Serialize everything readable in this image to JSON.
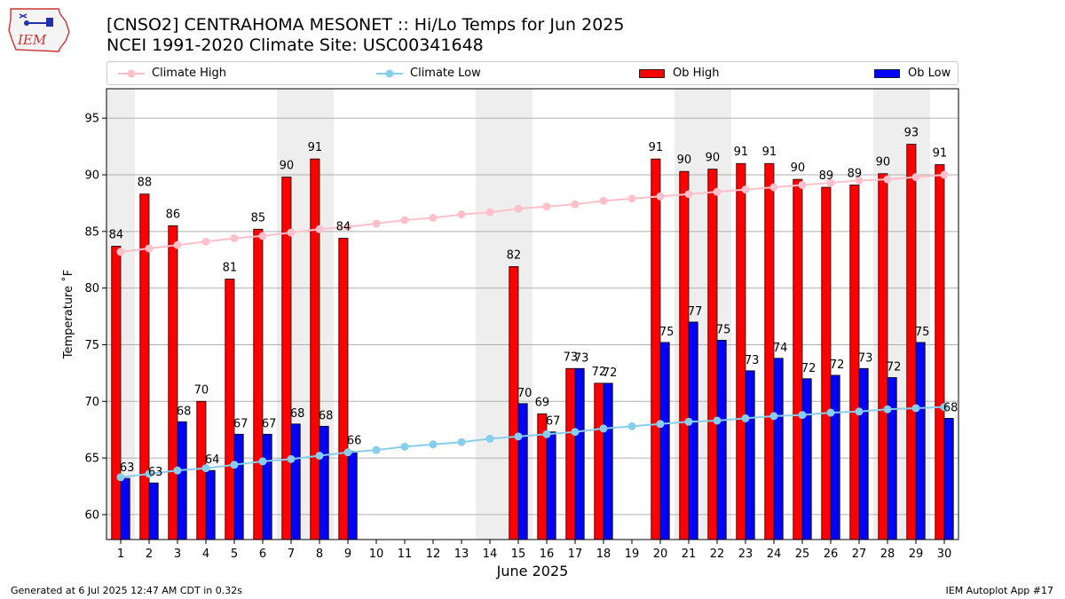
{
  "title_line1": "[CNSO2] CENTRAHOMA MESONET :: Hi/Lo Temps for Jun 2025",
  "title_line2": "NCEI 1991-2020 Climate Site: USC00341648",
  "logo_text": "IEM",
  "legend": {
    "climate_high": "Climate High",
    "climate_low": "Climate Low",
    "ob_high": "Ob High",
    "ob_low": "Ob Low"
  },
  "colors": {
    "ob_high": "#ff0000",
    "ob_low": "#0000ff",
    "climate_high": "#ffc0cb",
    "climate_low": "#87ceeb",
    "weekend_shade": "#eeeeee",
    "grid": "#b0b0b0"
  },
  "chart_data": {
    "type": "bar",
    "xlabel": "June 2025",
    "ylabel": "Temperature ˚F",
    "ylim": [
      57.8,
      97.6
    ],
    "yticks": [
      60,
      65,
      70,
      75,
      80,
      85,
      90,
      95
    ],
    "grid": "horizontal",
    "legend_position": "top",
    "x": [
      1,
      2,
      3,
      4,
      5,
      6,
      7,
      8,
      9,
      10,
      11,
      12,
      13,
      14,
      15,
      16,
      17,
      18,
      19,
      20,
      21,
      22,
      23,
      24,
      25,
      26,
      27,
      28,
      29,
      30
    ],
    "weekend_days": [
      1,
      7,
      8,
      14,
      15,
      21,
      22,
      28,
      29
    ],
    "series": [
      {
        "name": "Ob High",
        "kind": "bar",
        "values": [
          83.7,
          88.3,
          85.5,
          70.0,
          80.8,
          85.2,
          89.8,
          91.4,
          84.4,
          null,
          null,
          null,
          null,
          null,
          81.9,
          68.9,
          72.9,
          71.6,
          null,
          91.4,
          90.3,
          90.5,
          91.0,
          91.0,
          89.6,
          88.9,
          89.1,
          90.1,
          92.7,
          90.9
        ],
        "labels": [
          "84",
          "88",
          "86",
          "70",
          "81",
          "85",
          "90",
          "91",
          "84",
          "",
          "",
          "",
          "",
          "",
          "82",
          "69",
          "73",
          "72",
          "",
          "91",
          "90",
          "90",
          "91",
          "91",
          "90",
          "89",
          "89",
          "90",
          "93",
          "91"
        ]
      },
      {
        "name": "Ob Low",
        "kind": "bar",
        "values": [
          63.2,
          62.8,
          68.2,
          63.9,
          67.1,
          67.1,
          68.0,
          67.8,
          65.6,
          null,
          null,
          null,
          null,
          null,
          69.8,
          67.3,
          72.9,
          71.6,
          null,
          75.2,
          77.0,
          75.4,
          72.7,
          73.8,
          72.0,
          72.3,
          72.9,
          72.1,
          75.2,
          68.5
        ],
        "labels": [
          "63",
          "63",
          "68",
          "64",
          "67",
          "67",
          "68",
          "68",
          "66",
          "",
          "",
          "",
          "",
          "",
          "70",
          "67",
          "73",
          "72",
          "",
          "75",
          "77",
          "75",
          "73",
          "74",
          "72",
          "72",
          "73",
          "72",
          "75",
          "68"
        ]
      },
      {
        "name": "Climate High",
        "kind": "line",
        "values": [
          83.2,
          83.5,
          83.8,
          84.1,
          84.4,
          84.6,
          84.9,
          85.2,
          85.4,
          85.7,
          86.0,
          86.2,
          86.5,
          86.7,
          87.0,
          87.2,
          87.4,
          87.7,
          87.9,
          88.1,
          88.3,
          88.5,
          88.7,
          88.9,
          89.1,
          89.3,
          89.5,
          89.6,
          89.8,
          90.0
        ]
      },
      {
        "name": "Climate Low",
        "kind": "line",
        "values": [
          63.3,
          63.6,
          63.9,
          64.1,
          64.4,
          64.7,
          64.9,
          65.2,
          65.5,
          65.7,
          66.0,
          66.2,
          66.4,
          66.7,
          66.9,
          67.1,
          67.3,
          67.6,
          67.8,
          68.0,
          68.2,
          68.3,
          68.5,
          68.7,
          68.8,
          69.0,
          69.1,
          69.3,
          69.4,
          69.5
        ]
      }
    ]
  },
  "footer_left": "Generated at 6 Jul 2025 12:47 AM CDT in 0.32s",
  "footer_right": "IEM Autoplot App #17"
}
